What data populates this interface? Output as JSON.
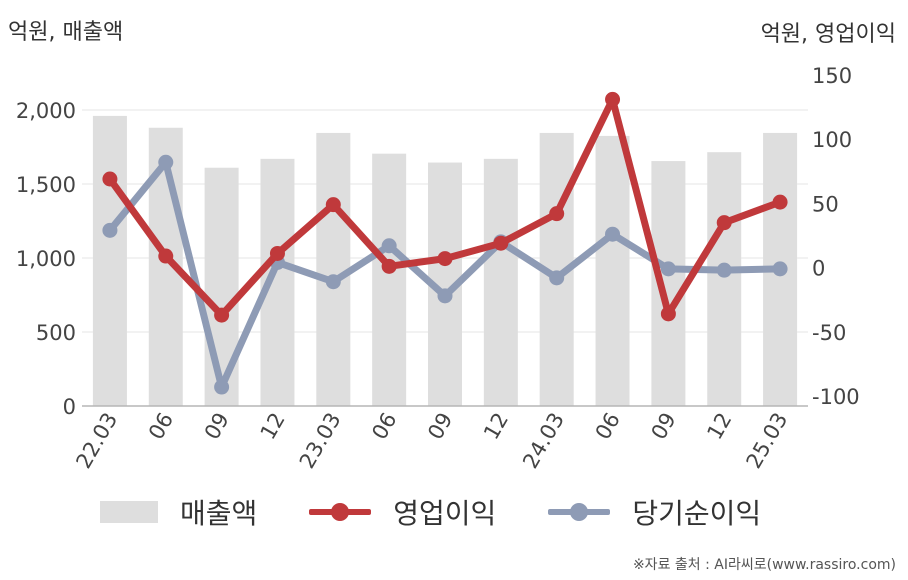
{
  "units": {
    "left": "억원, 매출액",
    "right": "억원, 영업이익"
  },
  "source": "※자료 출처 : AI라씨로(www.rassiro.com)",
  "colors": {
    "bar": "#dedede",
    "operating_profit": "#c0393b",
    "net_income": "#8e9bb5",
    "grid": "#e6e6e6",
    "axis": "#b5b5b5"
  },
  "chart_data": {
    "type": "bar+line",
    "categories": [
      "22.03",
      "06",
      "09",
      "12",
      "23.03",
      "06",
      "09",
      "12",
      "24.03",
      "06",
      "09",
      "12",
      "25.03"
    ],
    "left_axis": {
      "min": 0,
      "max": 2000,
      "ticks": [
        "0",
        "500",
        "1,000",
        "1,500",
        "2,000"
      ],
      "tick_values": [
        0,
        500,
        1000,
        1500,
        2000
      ]
    },
    "right_axis": {
      "min": -100,
      "max": 150,
      "ticks": [
        "-100",
        "-50",
        "0",
        "50",
        "100",
        "150"
      ],
      "tick_values": [
        -100,
        -50,
        0,
        50,
        100,
        150
      ]
    },
    "series": [
      {
        "name": "매출액",
        "type": "bar",
        "axis": "left",
        "values": [
          1960,
          1880,
          1610,
          1670,
          1845,
          1705,
          1645,
          1670,
          1845,
          1825,
          1655,
          1715,
          1845
        ]
      },
      {
        "name": "영업이익",
        "type": "line",
        "axis": "right",
        "values": [
          69,
          9,
          -37,
          11,
          49,
          1,
          7,
          19,
          42,
          131,
          -36,
          35,
          51
        ]
      },
      {
        "name": "당기순이익",
        "type": "line",
        "axis": "right",
        "values": [
          29,
          82,
          -93,
          4,
          -11,
          17,
          -22,
          20,
          -8,
          26,
          -1,
          -2,
          -1
        ]
      }
    ],
    "grid": true,
    "legend_position": "bottom"
  }
}
